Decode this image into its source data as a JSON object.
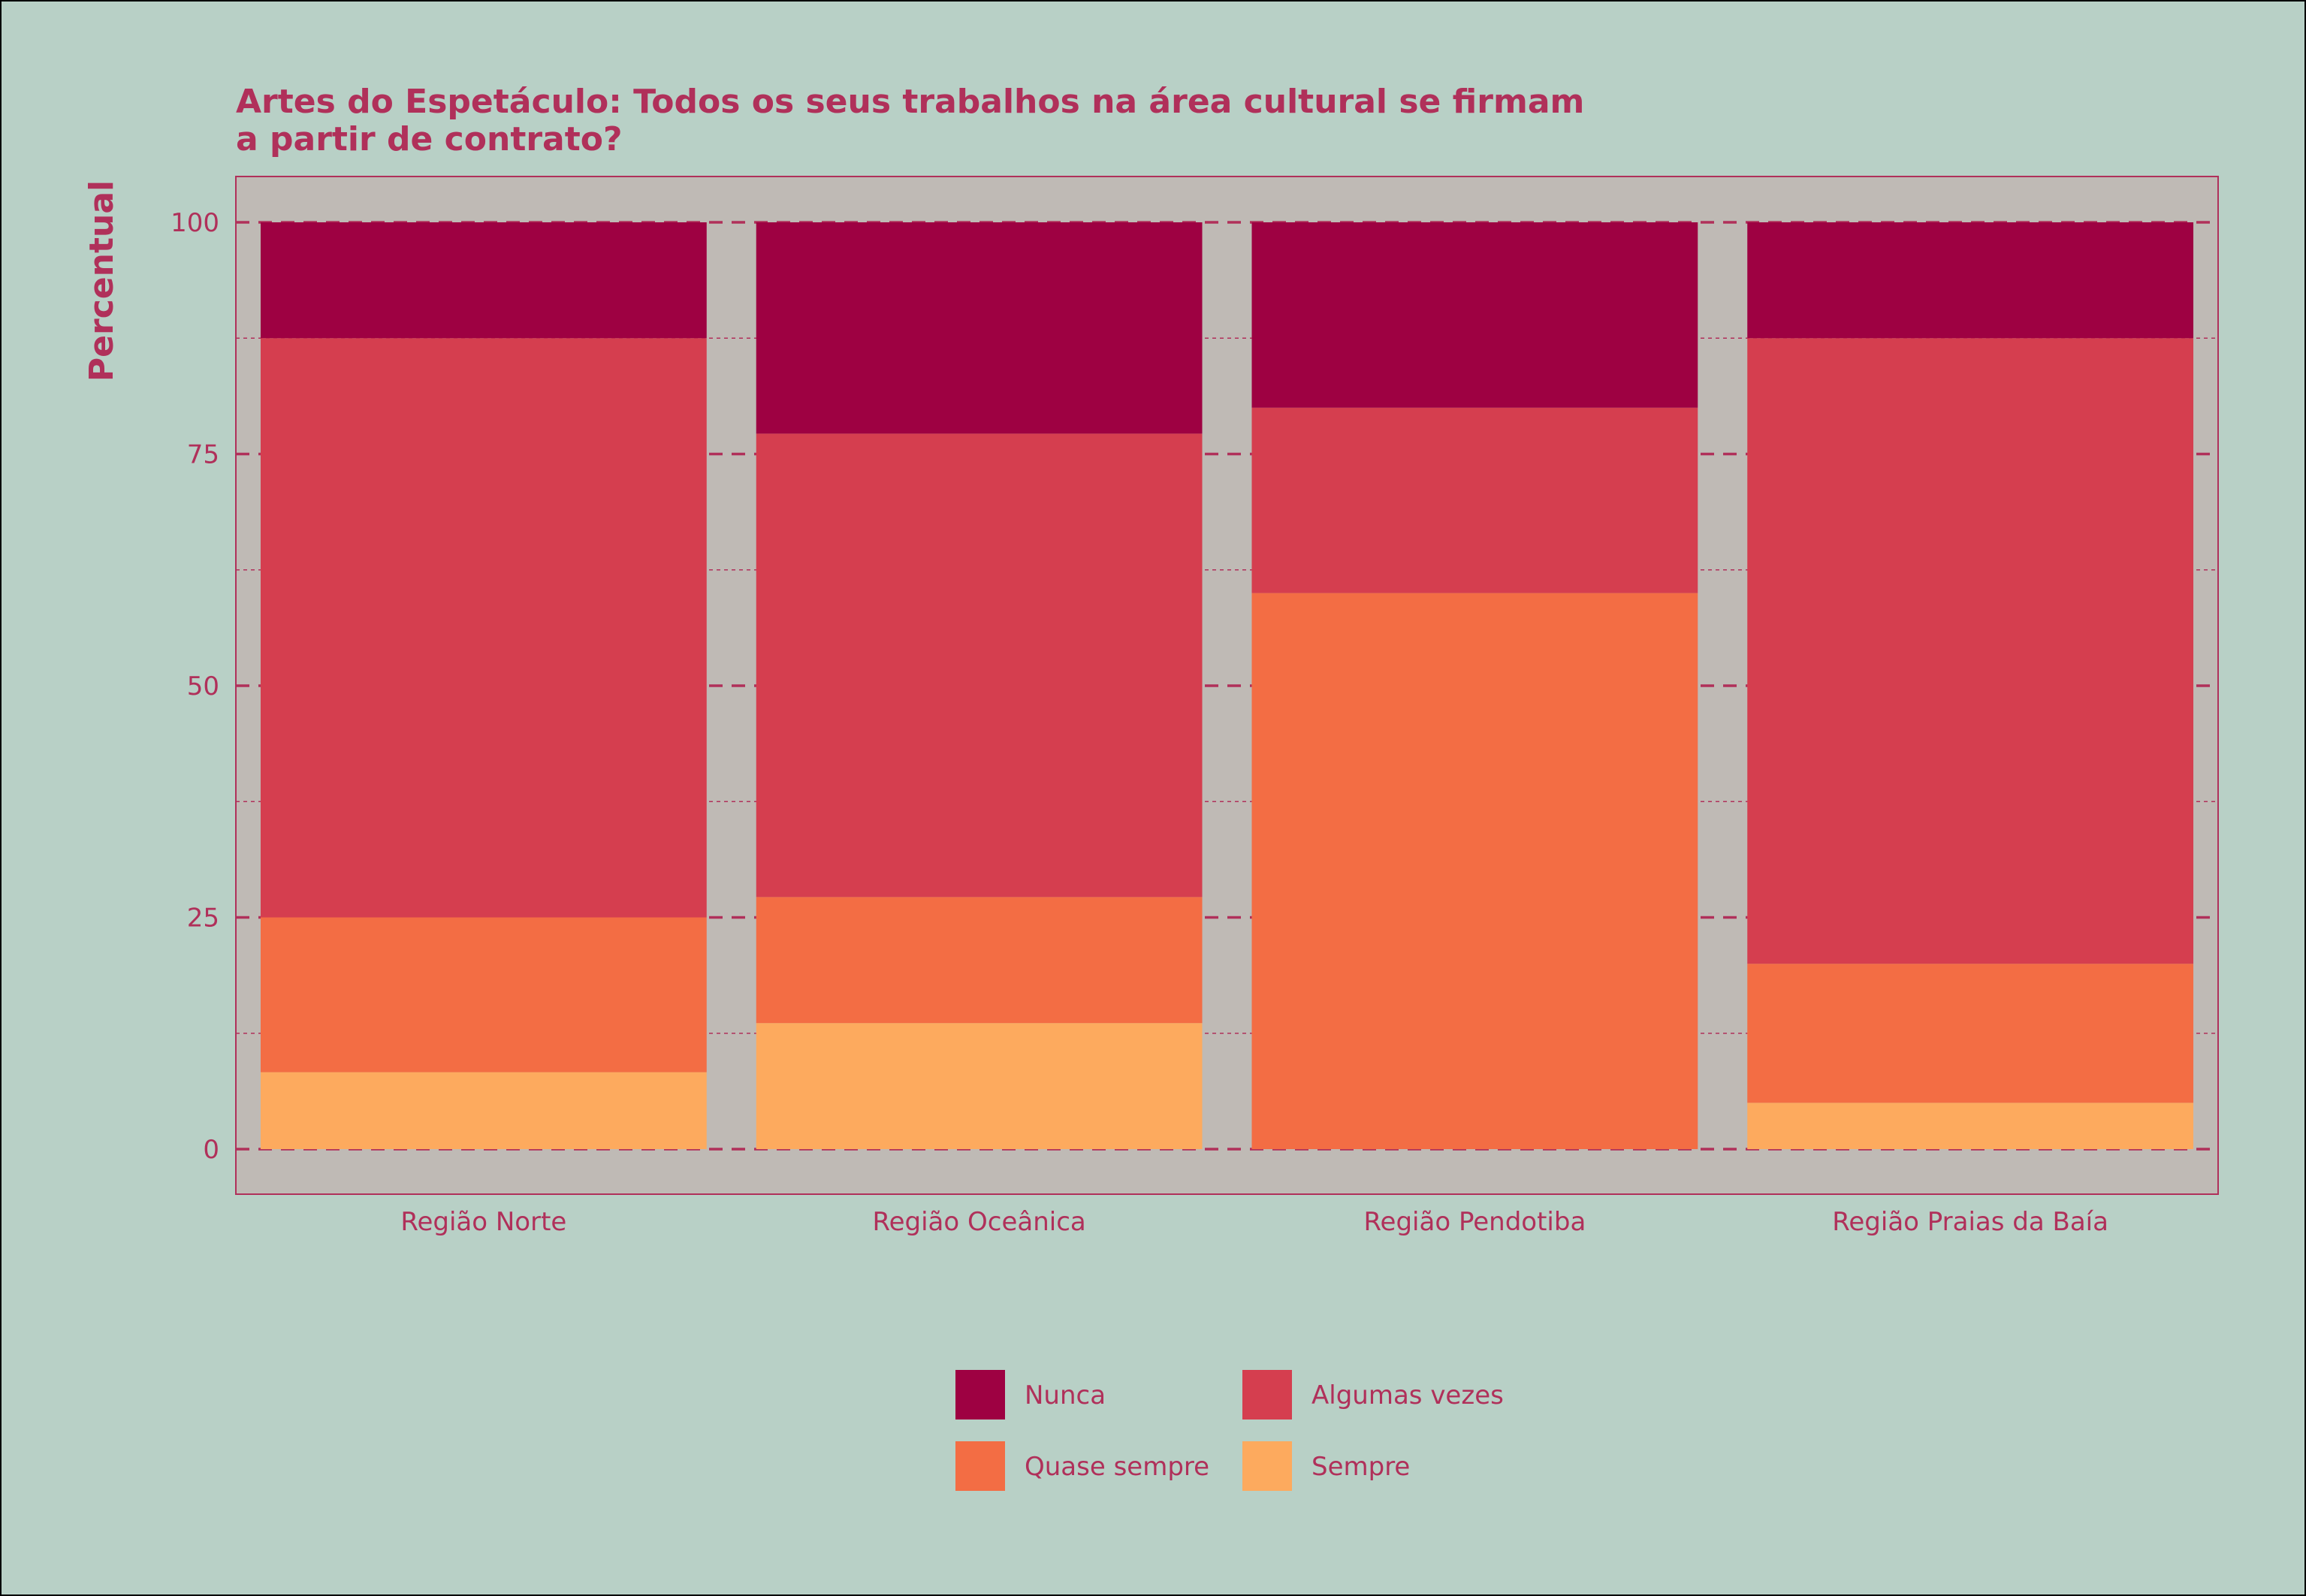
{
  "chart_data": {
    "type": "bar",
    "stacked": true,
    "title_lines": [
      "Artes do Espetáculo: Todos os seus trabalhos na área cultural se firmam",
      "a partir de contrato?"
    ],
    "xlabel": "",
    "ylabel": "Percentual",
    "ylim": [
      0,
      100
    ],
    "yticks": [
      "0",
      "25",
      "50",
      "75",
      "100"
    ],
    "ytick_values": [
      0,
      25,
      50,
      75,
      100
    ],
    "minor_gridlines": [
      12.5,
      37.5,
      62.5,
      87.5
    ],
    "grid": true,
    "legend_position": "bottom",
    "categories": [
      "Região Norte",
      "Região Oceânica",
      "Região Pendotiba",
      "Região Praias da Baía"
    ],
    "series": [
      {
        "name": "Sempre",
        "color": "#fdaa5e",
        "values": [
          8.3,
          13.6,
          0,
          5
        ]
      },
      {
        "name": "Quase sempre",
        "color": "#f36d44",
        "values": [
          16.7,
          13.6,
          60,
          15
        ]
      },
      {
        "name": "Algumas vezes",
        "color": "#d53e4f",
        "values": [
          62.5,
          50,
          20,
          67.5
        ]
      },
      {
        "name": "Nunca",
        "color": "#9e0142",
        "values": [
          12.5,
          22.8,
          20,
          12.5
        ]
      }
    ],
    "legend_order": [
      "Nunca",
      "Algumas vezes",
      "Quase sempre",
      "Sempre"
    ]
  },
  "colors": {
    "background": "#b8d0c6",
    "panel": "#bfbab5",
    "text": "#b0305a",
    "grid": "#b0305a"
  }
}
